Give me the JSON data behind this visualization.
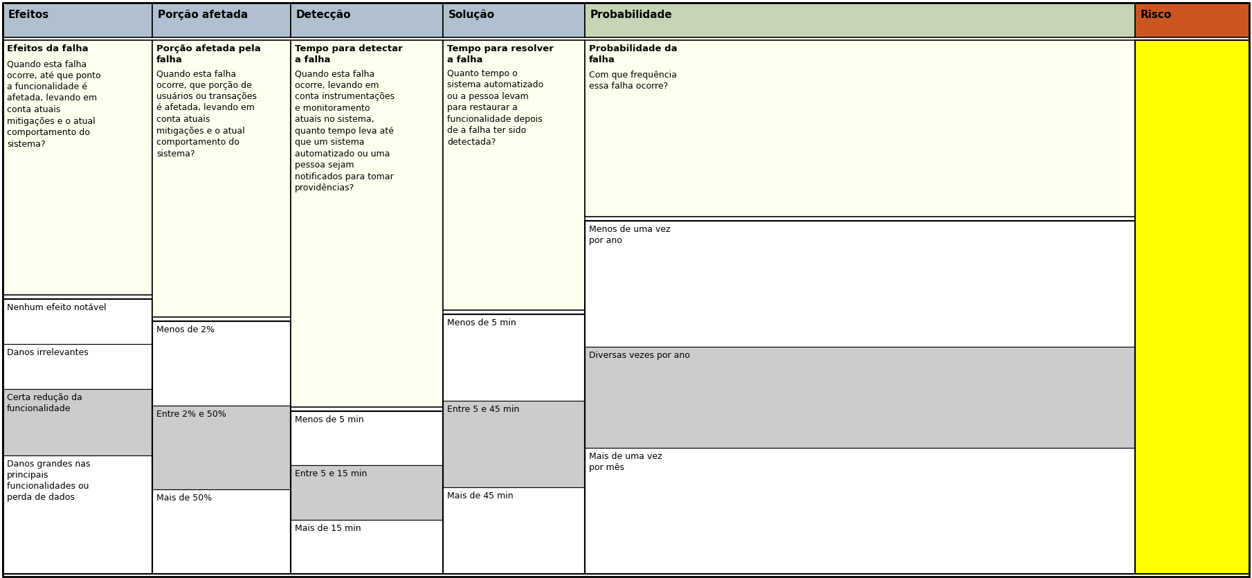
{
  "header_bg": "#b0c0d0",
  "prob_header_bg": "#c5d5b5",
  "risco_header_bg": "#cc5522",
  "risco_bg": "#ffff00",
  "cream_box_bg": "#ffffee",
  "gray_stripe": "#cccccc",
  "white_bg": "#ffffff",
  "columns": [
    "Efeitos",
    "Porção afetada",
    "Detecção",
    "Solução",
    "Probabilidade",
    "Risco"
  ],
  "efeitos_desc_title": "Efeitos da falha",
  "efeitos_desc": "Quando esta falha\nocorre, até que ponto\na funcionalidade é\nafetada, levando em\nconta atuais\nmitigações e o atual\ncomportamento do\nsistema?",
  "efeitos_items": [
    {
      "text": "Nenhum efeito notável",
      "shade": false
    },
    {
      "text": "Danos irrelevantes",
      "shade": false
    },
    {
      "text": "Certa redução da\nfuncionalidade",
      "shade": true
    },
    {
      "text": "Danos grandes nas\nprincipais\nfuncionalidades ou\nperda de dados",
      "shade": false
    }
  ],
  "porcao_desc_title": "Porção afetada pela\nfalha",
  "porcao_desc": "Quando esta falha\nocorre, que porção de\nusuários ou transações\né afetada, levando em\nconta atuais\nmitigações e o atual\ncomportamento do\nsistema?",
  "porcao_items": [
    {
      "text": "Menos de 2%",
      "shade": false
    },
    {
      "text": "Entre 2% e 50%",
      "shade": true
    },
    {
      "text": "Mais de 50%",
      "shade": false
    }
  ],
  "deteccao_desc_title": "Tempo para detectar\na falha",
  "deteccao_desc": "Quando esta falha\nocorre, levando em\nconta instrumentações\ne monitoramento\natuais no sistema,\nquanto tempo leva até\nque um sistema\nautomatizado ou uma\npessoa sejam\nnotificados para tomar\nprovidências?",
  "deteccao_items": [
    {
      "text": "Menos de 5 min",
      "shade": false
    },
    {
      "text": "Entre 5 e 15 min",
      "shade": true
    },
    {
      "text": "Mais de 15 min",
      "shade": false
    }
  ],
  "solucao_desc_title": "Tempo para resolver\na falha",
  "solucao_desc": "Quanto tempo o\nsistema automatizado\nou a pessoa levam\npara restaurar a\nfuncionalidade depois\nde a falha ter sido\ndetectada?",
  "solucao_items": [
    {
      "text": "Menos de 5 min",
      "shade": false
    },
    {
      "text": "Entre 5 e 45 min",
      "shade": true
    },
    {
      "text": "Mais de 45 min",
      "shade": false
    }
  ],
  "prob_desc_title": "Probabilidade da\nfalha",
  "prob_desc": "Com que frequência\nessa falha ocorre?",
  "prob_items": [
    {
      "text": "Menos de uma vez\npor ano",
      "shade": false
    },
    {
      "text": "Diversas vezes por ano",
      "shade": true
    },
    {
      "text": "Mais de uma vez\npor mês",
      "shade": false
    }
  ]
}
